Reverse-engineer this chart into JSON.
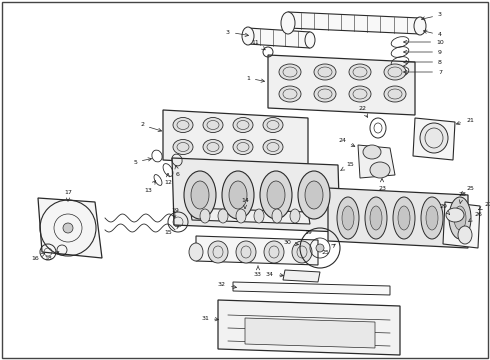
{
  "background_color": "#ffffff",
  "line_color": "#2a2a2a",
  "fig_width": 4.9,
  "fig_height": 3.6,
  "dpi": 100,
  "border": [
    2,
    2,
    486,
    356
  ]
}
